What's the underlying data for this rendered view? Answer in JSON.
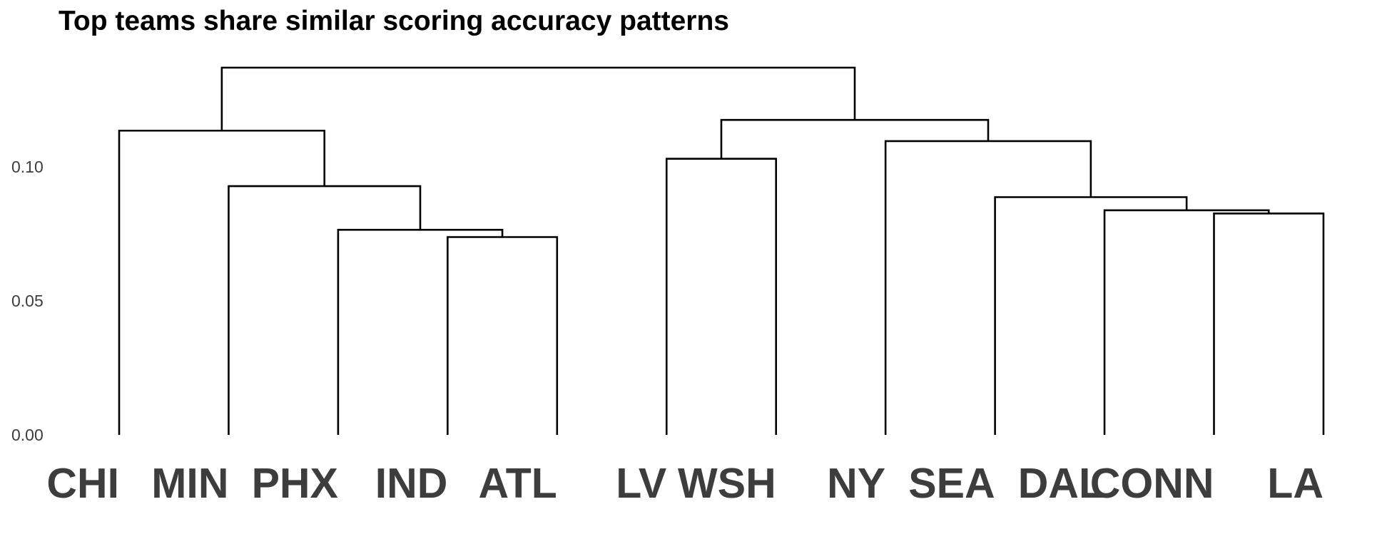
{
  "chart_data": {
    "type": "dendrogram",
    "title": "Top teams share similar scoring accuracy patterns",
    "xlabel": "",
    "ylabel": "",
    "ylim": [
      0,
      0.14
    ],
    "yticks": [
      {
        "value": 0.0,
        "label": "0.00"
      },
      {
        "value": 0.05,
        "label": "0.05"
      },
      {
        "value": 0.1,
        "label": "0.10"
      }
    ],
    "grid": false,
    "leaves": [
      "CHI",
      "MIN",
      "PHX",
      "IND",
      "ATL",
      "LV",
      "WSH",
      "NY",
      "SEA",
      "DAL",
      "CONN",
      "LA"
    ],
    "merges": [
      {
        "left": "leaf:3",
        "right": "leaf:4",
        "height": 0.0738
      },
      {
        "left": "leaf:2",
        "right": "merge:0",
        "height": 0.0765
      },
      {
        "left": "leaf:1",
        "right": "merge:1",
        "height": 0.0928
      },
      {
        "left": "leaf:0",
        "right": "merge:2",
        "height": 0.1135
      },
      {
        "left": "leaf:5",
        "right": "leaf:6",
        "height": 0.103
      },
      {
        "left": "leaf:10",
        "right": "leaf:11",
        "height": 0.0826
      },
      {
        "left": "leaf:9",
        "right": "merge:5",
        "height": 0.0838
      },
      {
        "left": "leaf:8",
        "right": "merge:6",
        "height": 0.0887
      },
      {
        "left": "leaf:7",
        "right": "merge:7",
        "height": 0.1096
      },
      {
        "left": "merge:4",
        "right": "merge:8",
        "height": 0.1175
      },
      {
        "left": "merge:3",
        "right": "merge:9",
        "height": 0.137
      }
    ]
  }
}
